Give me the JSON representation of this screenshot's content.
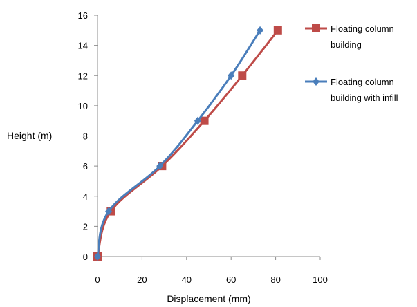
{
  "chart_data": {
    "type": "line",
    "title": "",
    "xlabel": "Displacement (mm)",
    "ylabel": "Height (m)",
    "xlim": [
      0,
      100
    ],
    "ylim": [
      0,
      16
    ],
    "xticks": [
      "0",
      "20",
      "40",
      "60",
      "80",
      "100"
    ],
    "yticks": [
      "0",
      "2",
      "4",
      "6",
      "8",
      "10",
      "12",
      "14",
      "16"
    ],
    "grid": false,
    "legend_position": "right",
    "series": [
      {
        "name": "Floating column building",
        "legend_lines": [
          "Floating column",
          "building"
        ],
        "marker": "square",
        "color": "#BE4B48",
        "x": [
          0,
          6,
          29,
          48,
          65,
          81
        ],
        "y": [
          0,
          3,
          6,
          9,
          12,
          15
        ]
      },
      {
        "name": "Floating column building with infill",
        "legend_lines": [
          "Floating column",
          "building with  infill"
        ],
        "marker": "diamond",
        "color": "#4A7EBB",
        "x": [
          0,
          5,
          28,
          45,
          60,
          73
        ],
        "y": [
          0,
          3,
          6,
          9,
          12,
          15
        ]
      }
    ]
  }
}
